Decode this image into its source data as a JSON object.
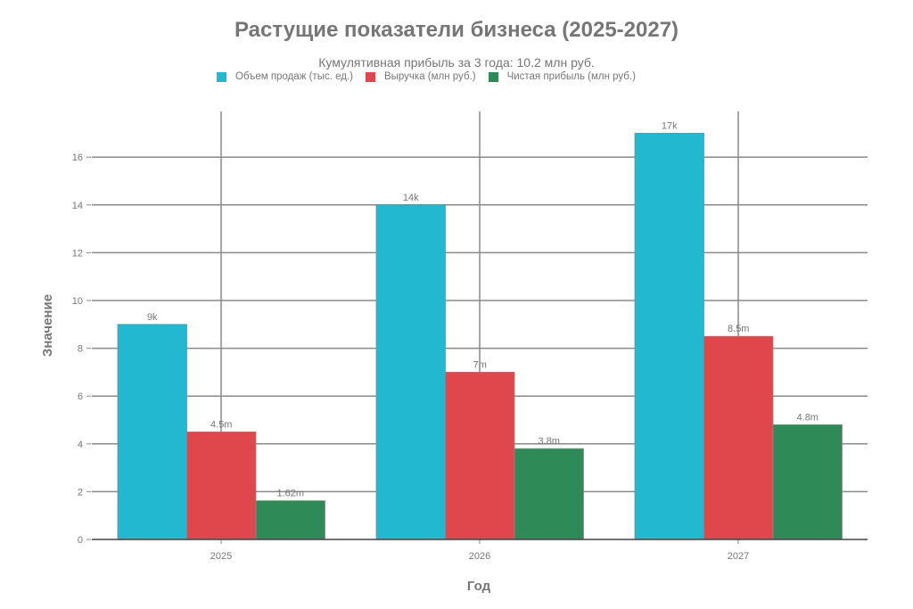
{
  "chart_data": {
    "type": "bar",
    "title": "Растущие показатели бизнеса (2025-2027)",
    "subtitle": "Кумулятивная прибыль за 3 года: 10.2 млн руб.",
    "xlabel": "Год",
    "ylabel": "Значение",
    "categories": [
      "2025",
      "2026",
      "2027"
    ],
    "series": [
      {
        "name": "Объем продаж (тыс. ед.)",
        "color": "#22b8cf",
        "values": [
          9,
          14,
          17
        ],
        "labels": [
          "9k",
          "14k",
          "17k"
        ]
      },
      {
        "name": "Выручка (млн руб.)",
        "color": "#e0474c",
        "values": [
          4.5,
          7,
          8.5
        ],
        "labels": [
          "4.5m",
          "7m",
          "8.5m"
        ]
      },
      {
        "name": "Чистая прибыль (млн руб.)",
        "color": "#2e8b57",
        "values": [
          1.62,
          3.8,
          4.8
        ],
        "labels": [
          "1.62m",
          "3.8m",
          "4.8m"
        ]
      }
    ],
    "yticks": [
      0,
      2,
      4,
      6,
      8,
      10,
      12,
      14,
      16
    ],
    "ylim": [
      0,
      17.9
    ],
    "grid": true,
    "legend_position": "top"
  },
  "colors": {
    "text": "#767676",
    "grid": "#8a8a8a",
    "axis": "#444444"
  }
}
